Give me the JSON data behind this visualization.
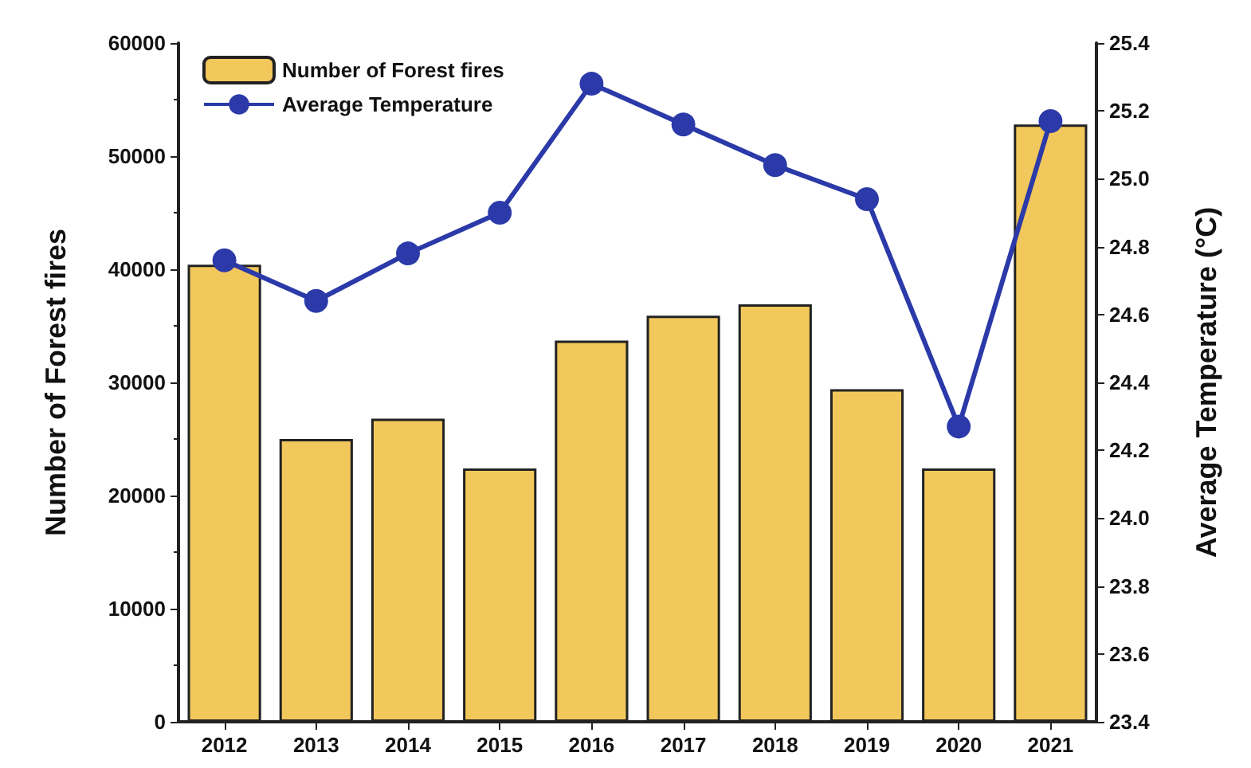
{
  "chart_data": {
    "type": "bar",
    "categories": [
      "2012",
      "2013",
      "2014",
      "2015",
      "2016",
      "2017",
      "2018",
      "2019",
      "2020",
      "2021"
    ],
    "series": [
      {
        "name": "Number of Forest fires",
        "color": "#f2c75c",
        "values": [
          40400,
          25000,
          26800,
          22400,
          33700,
          35900,
          36900,
          29400,
          22400,
          52800
        ]
      },
      {
        "name": "Average Temperature",
        "type": "line",
        "axis": "y2",
        "color": "#2b3aa8",
        "values": [
          24.76,
          24.64,
          24.78,
          24.9,
          25.28,
          25.16,
          25.04,
          24.94,
          24.27,
          25.17
        ]
      }
    ],
    "ylabel": "Number of Forest fires",
    "y2label": "Average Temperature (°C)",
    "ylim": [
      0,
      60000
    ],
    "yticks": [
      0,
      10000,
      20000,
      30000,
      40000,
      50000,
      60000
    ],
    "y2lim": [
      23.4,
      25.4
    ],
    "y2ticks": [
      23.4,
      23.6,
      23.8,
      {
        "value": 24,
        "label": "24.0"
      },
      24.2,
      24.4,
      24.6,
      24.8,
      {
        "value": 25,
        "label": "25.0"
      },
      25.2,
      25.4
    ],
    "grid": false,
    "legend": "top left",
    "marker": "circle",
    "line_style": "solid"
  }
}
